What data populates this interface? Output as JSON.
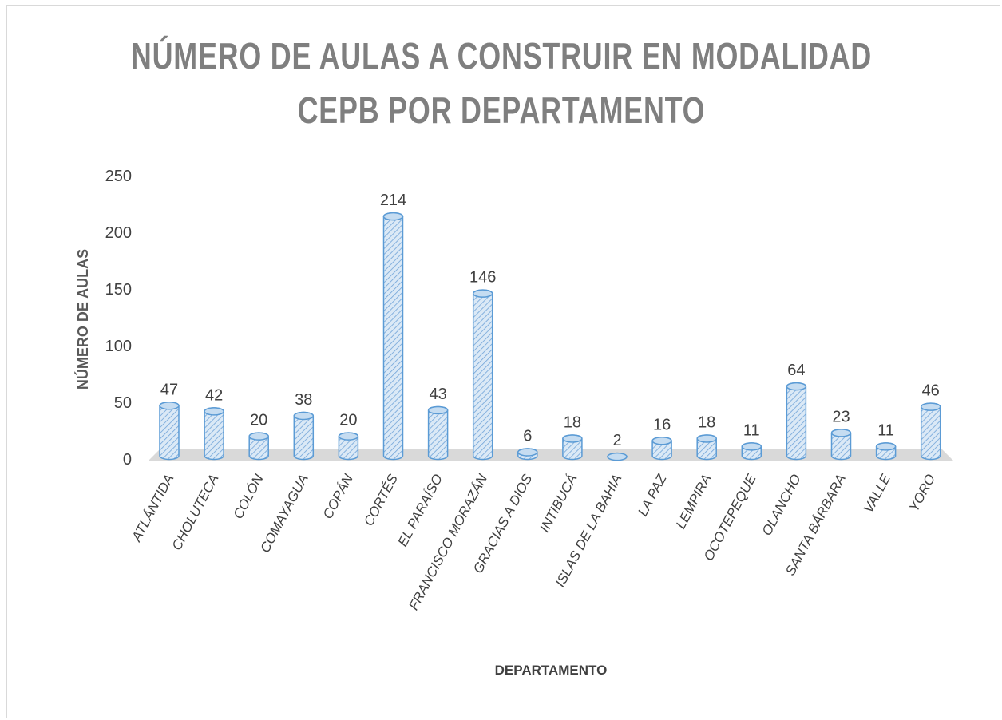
{
  "chart_data": {
    "type": "bar",
    "title": "NÚMERO DE AULAS A CONSTRUIR EN MODALIDAD CEPB POR DEPARTAMENTO",
    "x_label": "DEPARTAMENTO",
    "y_label": "NÚMERO DE AULAS",
    "categories": [
      "ATLÁNTIDA",
      "CHOLUTECA",
      "COLÓN",
      "COMAYAGUA",
      "COPÁN",
      "CORTÉS",
      "EL PARAÍSO",
      "FRANCISCO MORAZÁN",
      "GRACIAS A DIOS",
      "INTIBUCÁ",
      "ISLAS DE LA BAHÍA",
      "LA PAZ",
      "LEMPIRA",
      "OCOTEPEQUE",
      "OLANCHO",
      "SANTA BÁRBARA",
      "VALLE",
      "YORO"
    ],
    "values": [
      47,
      42,
      20,
      38,
      20,
      214,
      43,
      146,
      6,
      18,
      2,
      16,
      18,
      11,
      64,
      23,
      11,
      46
    ],
    "color": "#5b9bd5",
    "ylim": [
      0,
      250
    ],
    "yticks": [
      0,
      50,
      100,
      150,
      200,
      250
    ],
    "grid": false
  }
}
